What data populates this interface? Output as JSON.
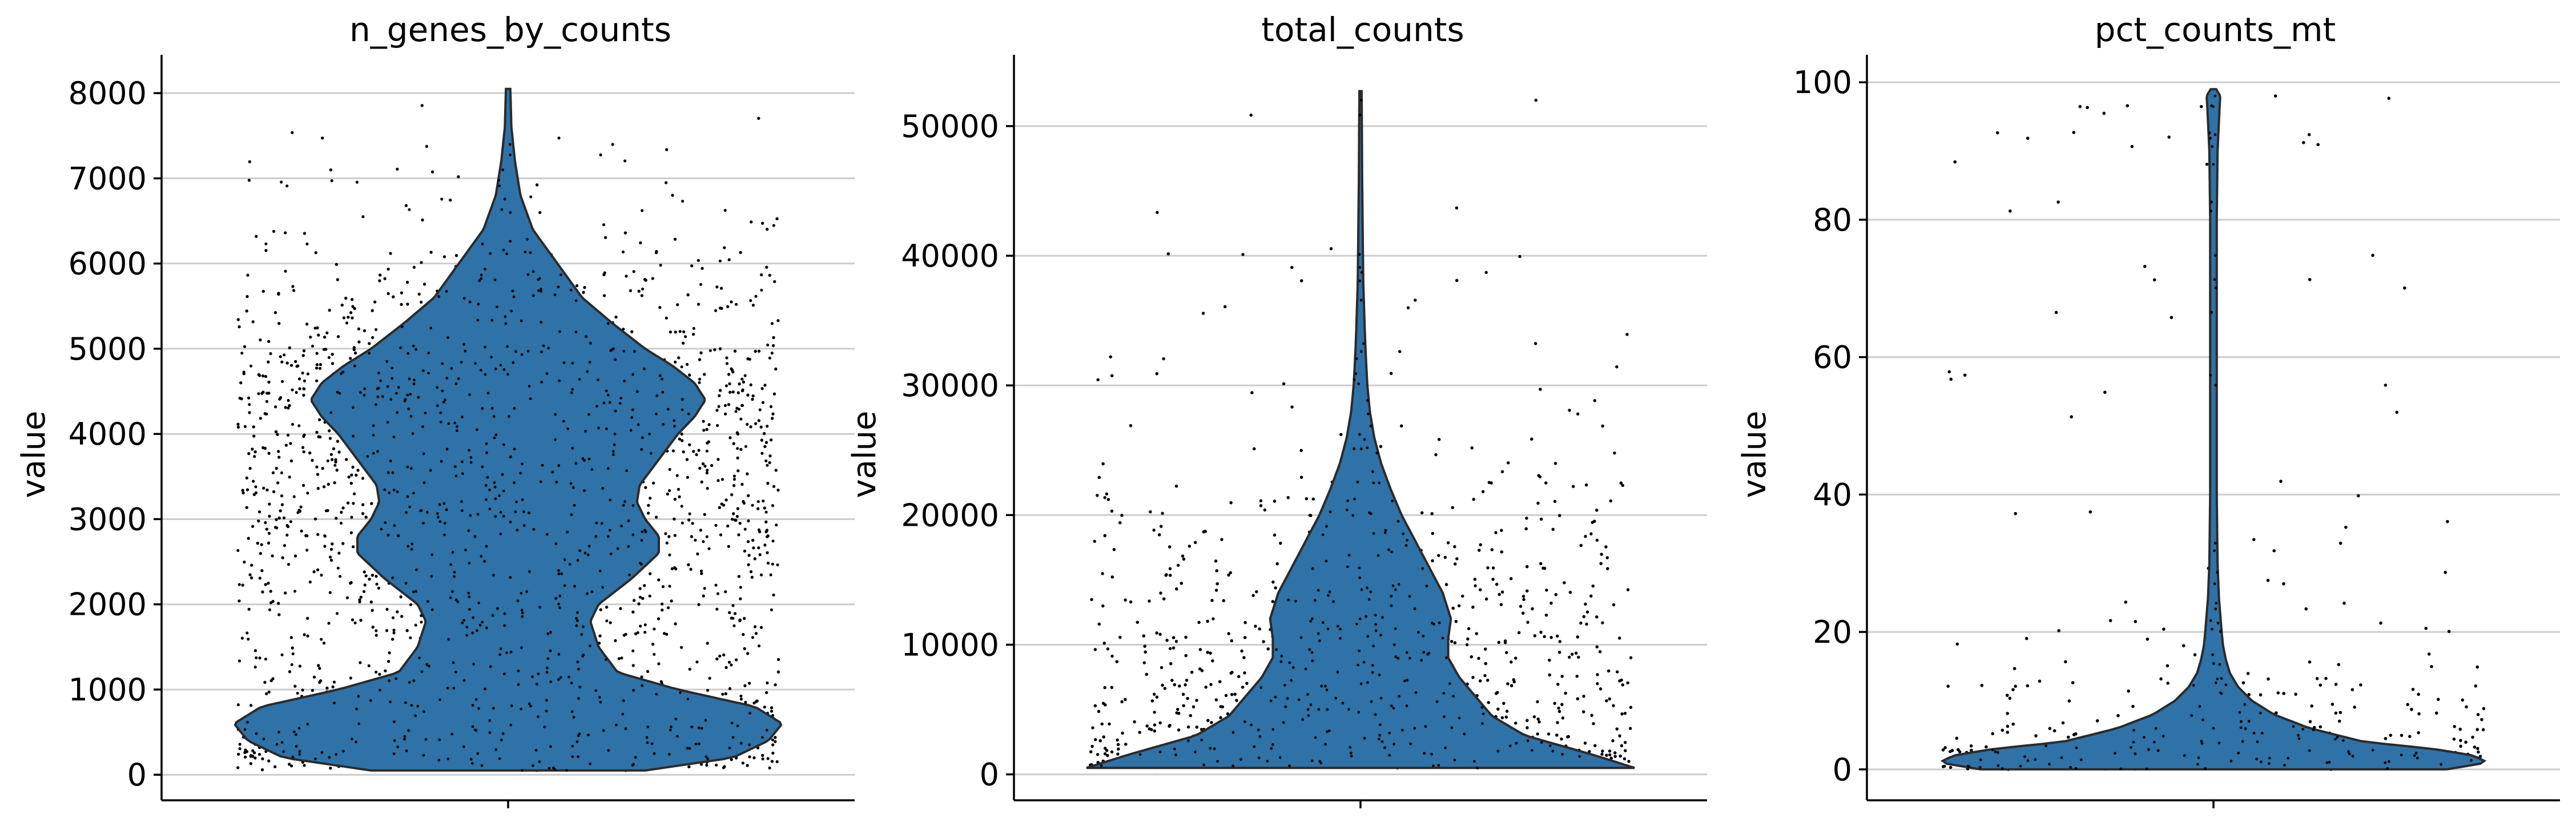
{
  "colors": {
    "violin_fill": "#2f72a8",
    "violin_edge": "#2b2b2b",
    "grid": "#cccccc",
    "points": "#000000",
    "axis": "#000000"
  },
  "chart_data": [
    {
      "type": "violin",
      "title": "n_genes_by_counts",
      "ylabel": "value",
      "ylim": [
        -300,
        8450
      ],
      "yticks": [
        0,
        1000,
        2000,
        3000,
        4000,
        5000,
        6000,
        7000,
        8000
      ],
      "ytick_labels": [
        "0",
        "1000",
        "2000",
        "3000",
        "4000",
        "5000",
        "6000",
        "7000",
        "8000"
      ],
      "grid": true,
      "data_range": [
        50,
        8050
      ],
      "density_profile": {
        "value": [
          50,
          200,
          400,
          600,
          800,
          1000,
          1200,
          1500,
          1800,
          2000,
          2300,
          2600,
          2800,
          3000,
          3200,
          3400,
          3700,
          4000,
          4200,
          4400,
          4600,
          4800,
          5000,
          5300,
          5600,
          6000,
          6400,
          6800,
          7200,
          7600,
          8050
        ],
        "relative_width": [
          0.5,
          0.82,
          0.95,
          1.0,
          0.9,
          0.62,
          0.4,
          0.33,
          0.3,
          0.33,
          0.45,
          0.55,
          0.55,
          0.5,
          0.47,
          0.48,
          0.55,
          0.62,
          0.68,
          0.72,
          0.68,
          0.6,
          0.5,
          0.38,
          0.27,
          0.18,
          0.09,
          0.045,
          0.025,
          0.012,
          0.008
        ]
      }
    },
    {
      "type": "violin",
      "title": "total_counts",
      "ylabel": "value",
      "ylim": [
        -2000,
        55500
      ],
      "yticks": [
        0,
        10000,
        20000,
        30000,
        40000,
        50000
      ],
      "ytick_labels": [
        "0",
        "10000",
        "20000",
        "30000",
        "40000",
        "50000"
      ],
      "grid": true,
      "data_range": [
        500,
        52700
      ],
      "density_profile": {
        "value": [
          500,
          1500,
          3000,
          4500,
          6000,
          7500,
          9000,
          10500,
          12000,
          14000,
          16000,
          18000,
          20000,
          22000,
          24000,
          26000,
          28000,
          30000,
          32000,
          34000,
          36000,
          38000,
          42000,
          46000,
          50000,
          52700
        ],
        "relative_width": [
          1.0,
          0.85,
          0.6,
          0.48,
          0.42,
          0.36,
          0.32,
          0.32,
          0.33,
          0.3,
          0.25,
          0.2,
          0.15,
          0.11,
          0.075,
          0.05,
          0.034,
          0.025,
          0.02,
          0.016,
          0.013,
          0.01,
          0.008,
          0.006,
          0.005,
          0.004
        ]
      }
    },
    {
      "type": "violin",
      "title": "pct_counts_mt",
      "ylabel": "value",
      "ylim": [
        -4.5,
        104
      ],
      "yticks": [
        0,
        20,
        40,
        60,
        80,
        100
      ],
      "ytick_labels": [
        "0",
        "20",
        "40",
        "60",
        "80",
        "100"
      ],
      "grid": true,
      "data_range": [
        0,
        99
      ],
      "density_profile": {
        "value": [
          0,
          1,
          2,
          3,
          4,
          6,
          8,
          10,
          12,
          14,
          16,
          18,
          20,
          25,
          30,
          40,
          50,
          60,
          70,
          80,
          90,
          96,
          98,
          99
        ],
        "relative_width": [
          0.85,
          1.0,
          0.95,
          0.8,
          0.55,
          0.35,
          0.22,
          0.14,
          0.09,
          0.06,
          0.045,
          0.035,
          0.03,
          0.02,
          0.015,
          0.012,
          0.012,
          0.012,
          0.012,
          0.012,
          0.015,
          0.022,
          0.025,
          0.01
        ]
      }
    }
  ]
}
